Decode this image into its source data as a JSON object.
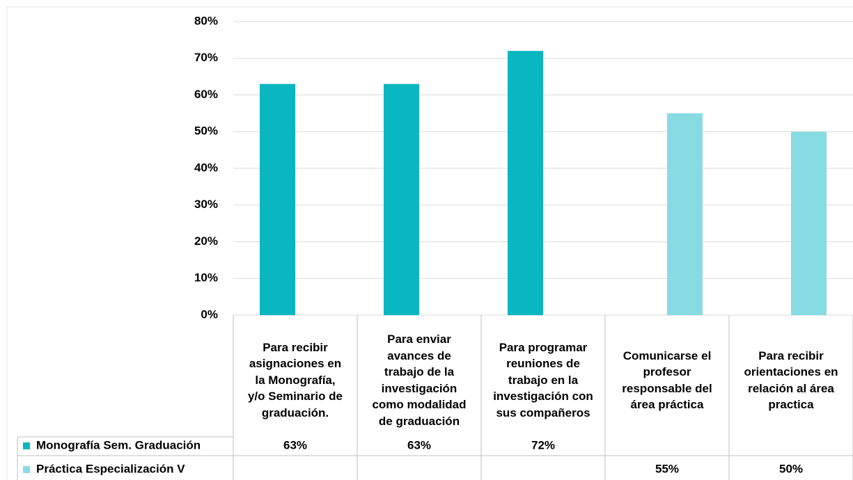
{
  "chart_data": {
    "type": "bar",
    "categories": [
      "Para recibir\nasignaciones en\nla Monografía,\ny/o Seminario de\ngraduación.",
      "Para enviar\navances de\ntrabajo de la\ninvestigación\ncomo modalidad\nde graduación",
      "Para programar\nreuniones de\ntrabajo en la\ninvestigación con\nsus compañeros",
      "Comunicarse  el\nprofesor\nresponsable del\nárea práctica",
      "Para recibir\norientaciones  en\nrelación al área\npractica"
    ],
    "series": [
      {
        "name": "Monografía Sem. Graduación",
        "color": "#0ab6bf",
        "values": [
          63,
          63,
          72,
          null,
          null
        ],
        "value_labels": [
          "63%",
          "63%",
          "72%",
          null,
          null
        ]
      },
      {
        "name": "Práctica Especialización V",
        "color": "#87dce3",
        "values": [
          null,
          null,
          null,
          55,
          50
        ],
        "value_labels": [
          null,
          null,
          null,
          "55%",
          "50%"
        ]
      }
    ],
    "ylim": [
      0,
      80
    ],
    "yticks": [
      {
        "value": 0,
        "label": "0%"
      },
      {
        "value": 10,
        "label": "10%"
      },
      {
        "value": 20,
        "label": "20%"
      },
      {
        "value": 30,
        "label": "30%"
      },
      {
        "value": 40,
        "label": "40%"
      },
      {
        "value": 50,
        "label": "50%"
      },
      {
        "value": 60,
        "label": "60%"
      },
      {
        "value": 70,
        "label": "70%"
      },
      {
        "value": 80,
        "label": "80%"
      }
    ],
    "grid": true
  }
}
